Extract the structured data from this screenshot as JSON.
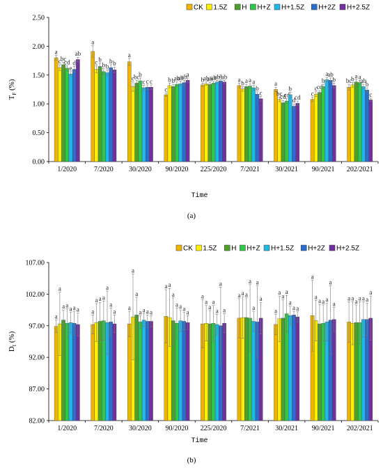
{
  "legend": [
    {
      "name": "CK",
      "color": "#f0b400"
    },
    {
      "name": "1.5Z",
      "color": "#ffee00"
    },
    {
      "name": "H",
      "color": "#4fa02a"
    },
    {
      "name": "H+Z",
      "color": "#2fc84a"
    },
    {
      "name": "H+1.5Z",
      "color": "#20b8e8"
    },
    {
      "name": "H+2Z",
      "color": "#2a6fd0"
    },
    {
      "name": "H+2.5Z",
      "color": "#7030a0"
    }
  ],
  "chart_data": [
    {
      "type": "bar",
      "panel_label": "(a)",
      "ylabel_main": "T",
      "ylabel_sub": "F",
      "ylabel_unit": "(%)",
      "xlabel": "Time",
      "categories": [
        "1/2020",
        "7/2020",
        "30/2020",
        "90/2020",
        "225/2020",
        "7/2021",
        "30/2021",
        "90/2021",
        "202/2021"
      ],
      "ylim": [
        0,
        2.5
      ],
      "yticks": [
        "0.00",
        "0.50",
        "1.00",
        "1.50",
        "2.00",
        "2.50"
      ],
      "series": [
        {
          "name": "CK",
          "values": [
            1.8,
            1.91,
            1.73,
            1.16,
            1.33,
            1.32,
            1.25,
            1.08,
            1.29
          ],
          "errors": [
            0.04,
            0.1,
            0.06,
            0.03,
            0.03,
            0.04,
            0.04,
            0.04,
            0.05
          ],
          "labels": [
            "a",
            "a",
            "a",
            "c",
            "b",
            "a",
            "a",
            "c",
            "bc"
          ]
        },
        {
          "name": "1.5Z",
          "values": [
            1.63,
            1.6,
            1.3,
            1.32,
            1.35,
            1.26,
            1.08,
            1.17,
            1.33
          ],
          "errors": [
            0.05,
            0.06,
            0.08,
            0.04,
            0.03,
            0.04,
            0.04,
            0.04,
            0.04
          ],
          "labels": [
            "c",
            "c",
            "c",
            "b",
            "ab",
            "b",
            "bc",
            "c",
            "b"
          ]
        },
        {
          "name": "H",
          "values": [
            1.68,
            1.65,
            1.36,
            1.3,
            1.34,
            1.3,
            1.02,
            1.2,
            1.38
          ],
          "errors": [
            0.04,
            0.06,
            0.05,
            0.04,
            0.03,
            0.04,
            0.04,
            0.03,
            0.04
          ],
          "labels": [
            "bc",
            "b",
            "bc",
            "b",
            "ab",
            "a",
            "cd",
            "cd",
            "a"
          ]
        },
        {
          "name": "H+Z",
          "values": [
            1.62,
            1.56,
            1.4,
            1.34,
            1.36,
            1.31,
            1.05,
            1.3,
            1.37
          ],
          "errors": [
            0.04,
            0.05,
            0.05,
            0.04,
            0.03,
            0.04,
            0.04,
            0.04,
            0.04
          ],
          "labels": [
            "cd",
            "b",
            "b",
            "ab",
            "ab",
            "a",
            "cd",
            "b",
            "a"
          ]
        },
        {
          "name": "H+1.5Z",
          "values": [
            1.52,
            1.54,
            1.28,
            1.35,
            1.38,
            1.28,
            1.16,
            1.42,
            1.3
          ],
          "errors": [
            0.04,
            0.05,
            0.04,
            0.04,
            0.03,
            0.04,
            0.04,
            0.04,
            0.04
          ],
          "labels": [
            "e",
            "b",
            "c",
            "ab",
            "ab",
            "a",
            "b",
            "a",
            "ab"
          ]
        },
        {
          "name": "H+2Z",
          "values": [
            1.6,
            1.63,
            1.29,
            1.37,
            1.4,
            1.17,
            0.96,
            1.41,
            1.24
          ],
          "errors": [
            0.05,
            0.05,
            0.04,
            0.04,
            0.03,
            0.04,
            0.04,
            0.04,
            0.04
          ],
          "labels": [
            "d",
            "b",
            "c",
            "ab",
            "a",
            "b",
            "d",
            "ab",
            "b"
          ]
        },
        {
          "name": "H+2.5Z",
          "values": [
            1.77,
            1.59,
            1.29,
            1.41,
            1.38,
            1.09,
            1.01,
            1.32,
            1.07
          ],
          "errors": [
            0.04,
            0.05,
            0.04,
            0.04,
            0.03,
            0.04,
            0.04,
            0.04,
            0.03
          ],
          "labels": [
            "ab",
            "b",
            "c",
            "a",
            "ab",
            "c",
            "cd",
            "b",
            "c"
          ]
        }
      ]
    },
    {
      "type": "bar",
      "panel_label": "(b)",
      "ylabel_main": "D",
      "ylabel_sub": "I",
      "ylabel_unit": "(%)",
      "xlabel": "Time",
      "categories": [
        "1/2020",
        "7/2020",
        "30/2020",
        "90/2020",
        "225/2020",
        "7/2021",
        "30/2021",
        "90/2021",
        "202/2021"
      ],
      "ylim": [
        82,
        107
      ],
      "yticks": [
        "82.00",
        "87.00",
        "92.00",
        "97.00",
        "102.00",
        "107.00"
      ],
      "series": [
        {
          "name": "CK",
          "values": [
            96.9,
            97.2,
            97.3,
            98.5,
            97.3,
            98.2,
            97.2,
            98.6,
            97.6
          ],
          "errors": [
            1.0,
            1.5,
            2.0,
            4.2,
            3.8,
            3.1,
            1.6,
            5.6,
            3.2
          ],
          "labels": [
            "a",
            "a",
            "a",
            "a",
            "a",
            "a",
            "a",
            "a",
            "a"
          ]
        },
        {
          "name": "1.5Z",
          "values": [
            97.3,
            97.5,
            98.4,
            98.3,
            97.4,
            98.3,
            98.1,
            97.8,
            97.4
          ],
          "errors": [
            5.0,
            3.0,
            6.8,
            4.6,
            2.8,
            3.3,
            3.6,
            3.2,
            3.4
          ],
          "labels": [
            "a",
            "a",
            "a",
            "a",
            "a",
            "a",
            "a",
            "a",
            "a"
          ]
        },
        {
          "name": "H",
          "values": [
            97.9,
            97.7,
            98.7,
            97.8,
            97.3,
            98.3,
            98.2,
            97.3,
            97.5
          ],
          "errors": [
            1.6,
            3.0,
            2.8,
            3.6,
            2.1,
            3.1,
            2.9,
            3.1,
            2.8
          ],
          "labels": [
            "a",
            "a",
            "a",
            "a",
            "a",
            "a",
            "a",
            "a",
            "a"
          ]
        },
        {
          "name": "H+Z",
          "values": [
            97.4,
            97.8,
            97.6,
            97.4,
            97.4,
            98.2,
            98.9,
            97.4,
            97.5
          ],
          "errors": [
            2.3,
            3.1,
            1.0,
            2.4,
            2.8,
            5.3,
            2.9,
            2.9,
            3.3
          ],
          "labels": [
            "a",
            "a",
            "a",
            "a",
            "a",
            "a",
            "a",
            "a",
            "a"
          ]
        },
        {
          "name": "H+1.5Z",
          "values": [
            97.5,
            97.5,
            97.9,
            97.8,
            97.2,
            97.7,
            98.6,
            97.6,
            98.0
          ],
          "errors": [
            1.6,
            5.0,
            1.0,
            1.7,
            1.6,
            1.6,
            1.5,
            3.0,
            2.8
          ],
          "labels": [
            "a",
            "a",
            "a",
            "a",
            "a",
            "a",
            "a",
            "a",
            "a"
          ]
        },
        {
          "name": "H+2Z",
          "values": [
            97.4,
            97.6,
            97.7,
            97.7,
            97.0,
            97.6,
            98.7,
            97.9,
            98.0
          ],
          "errors": [
            1.9,
            2.2,
            1.0,
            1.4,
            6.1,
            5.7,
            0.6,
            5.4,
            2.6
          ],
          "labels": [
            "a",
            "a",
            "a",
            "a",
            "a",
            "a",
            "a",
            "a",
            "a"
          ]
        },
        {
          "name": "H+2.5Z",
          "values": [
            97.2,
            97.3,
            97.7,
            97.5,
            97.4,
            98.2,
            98.4,
            98.0,
            98.2
          ],
          "errors": [
            1.8,
            1.4,
            0.9,
            1.1,
            1.5,
            2.5,
            0.8,
            1.9,
            3.5
          ],
          "labels": [
            "a",
            "a",
            "a",
            "a",
            "a",
            "a",
            "a",
            "a",
            "a"
          ]
        }
      ]
    }
  ]
}
